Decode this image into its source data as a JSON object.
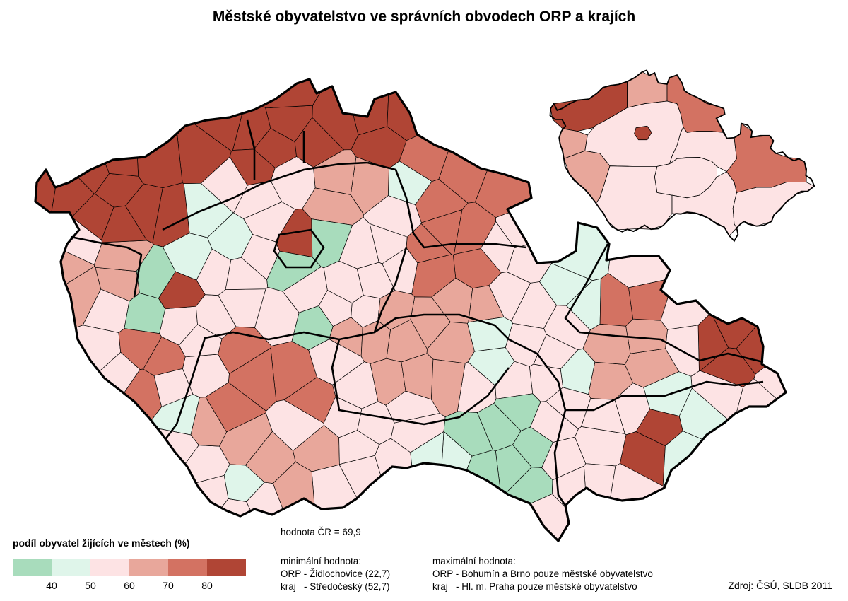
{
  "title": "Městské obyvatelstvo ve správních obvodech ORP a krajích",
  "legend": {
    "title": "podíl obyvatel žijících ve městech (%)",
    "colors": [
      "#a8dcbc",
      "#dff5ea",
      "#fde3e4",
      "#e8a79b",
      "#d37262",
      "#b04535"
    ],
    "ticks": [
      "40",
      "50",
      "60",
      "70",
      "80"
    ]
  },
  "stats": {
    "national": "hodnota ČR = 69,9",
    "min_heading": "minimální hodnota:",
    "min_orp": "ORP - Židlochovice (22,7)",
    "min_kraj": "kraj   - Středočeský (52,7)",
    "max_heading": "maximální hodnota:",
    "max_orp": "ORP - Bohumín a Brno pouze městské obyvatelstvo",
    "max_kraj": "kraj   - Hl. m. Praha pouze městské obyvatelstvo"
  },
  "source": "Zdroj: ČSÚ, SLDB 2011",
  "map_colors": {
    "border": "#000000",
    "no_data": "#ffffff"
  }
}
